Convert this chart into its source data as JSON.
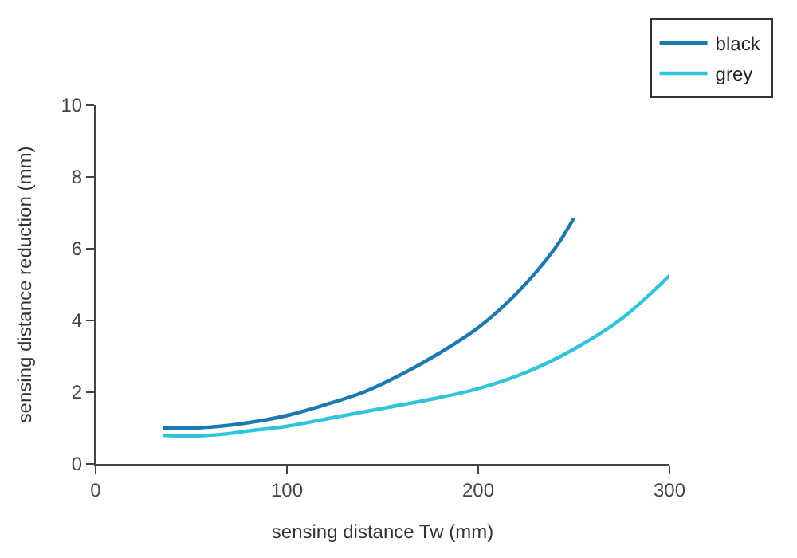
{
  "chart_data": {
    "type": "line",
    "xlabel": "sensing distance Tw (mm)",
    "ylabel": "sensing distance reduction (mm)",
    "xlim": [
      0,
      300
    ],
    "xticks": [
      0,
      100,
      200,
      300
    ],
    "ylim": [
      0,
      10
    ],
    "yticks": [
      0,
      2,
      4,
      6,
      8,
      10
    ],
    "legend": "top right",
    "marker": "none",
    "line_style": "solid",
    "series": [
      {
        "name": "black",
        "color": "#1a7ab0",
        "x": [
          35,
          50,
          65,
          80,
          100,
          120,
          140,
          160,
          180,
          200,
          220,
          240,
          250
        ],
        "values": [
          1.0,
          1.0,
          1.05,
          1.15,
          1.35,
          1.65,
          2.0,
          2.5,
          3.1,
          3.8,
          4.75,
          6.0,
          6.85
        ]
      },
      {
        "name": "grey",
        "color": "#2ec4dc",
        "x": [
          35,
          50,
          65,
          80,
          100,
          125,
          150,
          175,
          200,
          225,
          250,
          275,
          300
        ],
        "values": [
          0.8,
          0.78,
          0.82,
          0.92,
          1.05,
          1.3,
          1.55,
          1.8,
          2.1,
          2.55,
          3.2,
          4.05,
          5.25
        ]
      }
    ]
  }
}
